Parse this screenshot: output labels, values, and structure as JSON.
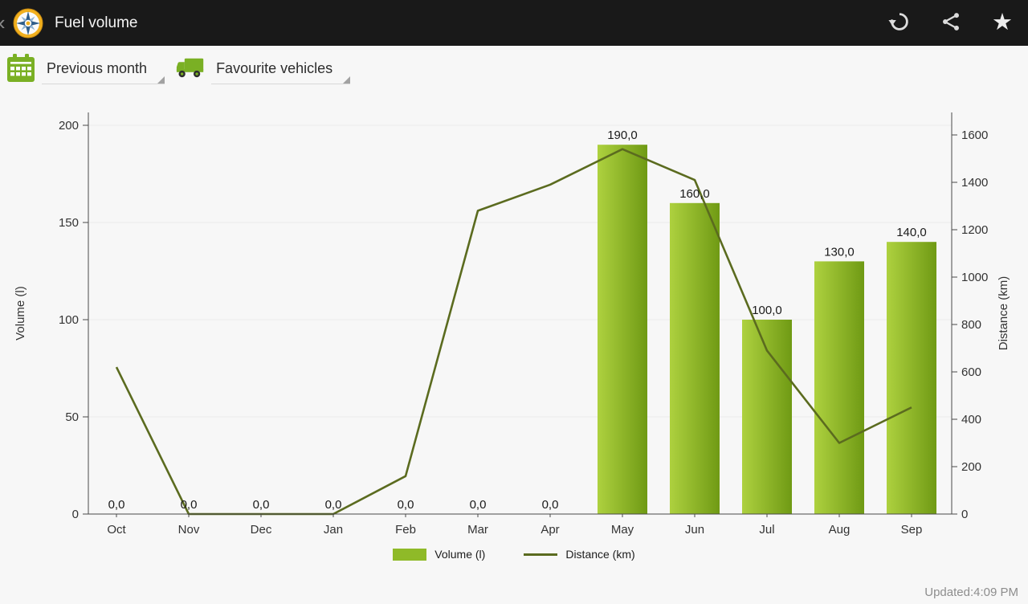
{
  "action_bar": {
    "title": "Fuel volume",
    "icons": {
      "back": "‹",
      "favorite": "★"
    }
  },
  "toolbar": {
    "period_spinner": "Previous month",
    "vehicle_spinner": "Favourite vehicles"
  },
  "chart_data": {
    "type": "bar+line",
    "categories": [
      "Oct",
      "Nov",
      "Dec",
      "Jan",
      "Feb",
      "Mar",
      "Apr",
      "May",
      "Jun",
      "Jul",
      "Aug",
      "Sep"
    ],
    "series": [
      {
        "name": "Volume (l)",
        "type": "bar",
        "axis": "left",
        "values": [
          0,
          0,
          0,
          0,
          0,
          0,
          0,
          190,
          160,
          100,
          130,
          140
        ],
        "value_labels": [
          "0,0",
          "0,0",
          "0,0",
          "0,0",
          "0,0",
          "0,0",
          "0,0",
          "190,0",
          "160,0",
          "100,0",
          "130,0",
          "140,0"
        ]
      },
      {
        "name": "Distance (km)",
        "type": "line",
        "axis": "right",
        "values": [
          620,
          0,
          0,
          0,
          160,
          1280,
          1390,
          1540,
          1410,
          690,
          300,
          450
        ]
      }
    ],
    "left_axis": {
      "title": "Volume (l)",
      "ticks": [
        0,
        50,
        100,
        150,
        200
      ],
      "max": 200
    },
    "right_axis": {
      "title": "Distance (km)",
      "ticks": [
        0,
        200,
        400,
        600,
        800,
        1000,
        1200,
        1400,
        1600
      ],
      "max": 1600
    },
    "grid": "horizontal",
    "legend_position": "bottom"
  },
  "footer": {
    "updated": "Updated:4:09 PM"
  },
  "colors": {
    "action_bar_bg": "#191919",
    "accent_green": "#7ab024",
    "bar_gradient_light": "#aed13f",
    "bar_gradient_dark": "#6f9a14",
    "bar_flat": "#8fba28",
    "line": "#5b6b1f",
    "grid": "#ebebeb",
    "axis": "#4a4a4a",
    "text": "#333333",
    "muted": "#8d8d8d"
  }
}
